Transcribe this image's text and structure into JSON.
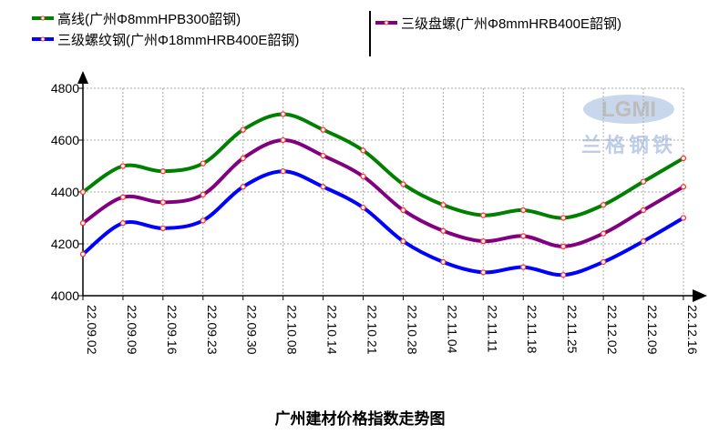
{
  "chart_data": {
    "type": "line",
    "title": "广州建材价格指数走势图",
    "xlabel": "",
    "ylabel": "",
    "ylim": [
      4000,
      4800
    ],
    "yticks": [
      4000,
      4200,
      4400,
      4600,
      4800
    ],
    "grid": true,
    "legend_position": "top",
    "categories": [
      "22.09.02",
      "22.09.09",
      "22.09.16",
      "22.09.23",
      "22.09.30",
      "22.10.08",
      "22.10.14",
      "22.10.21",
      "22.10.28",
      "22.11.04",
      "22.11.11",
      "22.11.18",
      "22.11.25",
      "22.12.02",
      "22.12.09",
      "22.12.16"
    ],
    "series": [
      {
        "name": "高线(广州Φ8mmHPB300韶钢)",
        "color": "#008000",
        "values": [
          4400,
          4500,
          4480,
          4510,
          4640,
          4700,
          4640,
          4560,
          4430,
          4350,
          4310,
          4330,
          4300,
          4350,
          4440,
          4530
        ]
      },
      {
        "name": "三级盘螺(广州Φ8mmHRB400E韶钢)",
        "color": "#800080",
        "values": [
          4280,
          4380,
          4360,
          4390,
          4530,
          4600,
          4540,
          4460,
          4330,
          4250,
          4210,
          4230,
          4190,
          4240,
          4330,
          4420
        ]
      },
      {
        "name": "三级螺纹钢(广州Φ18mmHRB400E韶钢)",
        "color": "#0000ff",
        "values": [
          4160,
          4280,
          4260,
          4290,
          4420,
          4480,
          4420,
          4340,
          4210,
          4130,
          4090,
          4110,
          4080,
          4130,
          4210,
          4300
        ]
      }
    ],
    "marker_color": "#ff3333"
  },
  "watermark": {
    "logo_text": "LGMI",
    "cn_text": "兰格钢铁"
  }
}
